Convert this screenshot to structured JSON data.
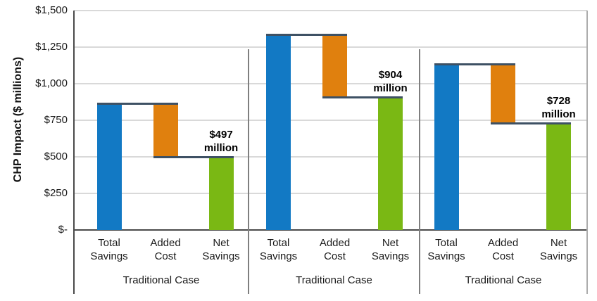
{
  "chart_data": {
    "type": "bar",
    "variant": "grouped-waterfall",
    "title": "",
    "ylabel": "CHP Impact ($ millions)",
    "xlabel": "",
    "ylim": [
      0,
      1500
    ],
    "grid": true,
    "y_ticks": [
      {
        "value": 0,
        "label": "$-"
      },
      {
        "value": 250,
        "label": "$250"
      },
      {
        "value": 500,
        "label": "$500"
      },
      {
        "value": 750,
        "label": "$750"
      },
      {
        "value": 1000,
        "label": "$1,000"
      },
      {
        "value": 1250,
        "label": "$1,250"
      },
      {
        "value": 1500,
        "label": "$1,500"
      }
    ],
    "bar_categories": [
      [
        "Total",
        "Savings"
      ],
      [
        "Added",
        "Cost"
      ],
      [
        "Net",
        "Savings"
      ]
    ],
    "groups": [
      {
        "label": "Traditional Case",
        "total_savings": 865,
        "added_cost": 368,
        "net_savings": 497,
        "annotation_lines": [
          "$497",
          "million"
        ]
      },
      {
        "label": "Traditional Case",
        "total_savings": 1335,
        "added_cost": 431,
        "net_savings": 904,
        "annotation_lines": [
          "$904",
          "million"
        ]
      },
      {
        "label": "Traditional Case",
        "total_savings": 1130,
        "added_cost": 402,
        "net_savings": 728,
        "annotation_lines": [
          "$728",
          "million"
        ]
      }
    ],
    "colors": {
      "total_savings": "#1279C4",
      "added_cost": "#E0800E",
      "net_savings": "#7AB814",
      "connector": "#3E5164",
      "gridline": "#D9D9D9",
      "axis": "#4A4A4A",
      "divider": "#7F7F7F",
      "right_border": "#ADADAD"
    }
  }
}
